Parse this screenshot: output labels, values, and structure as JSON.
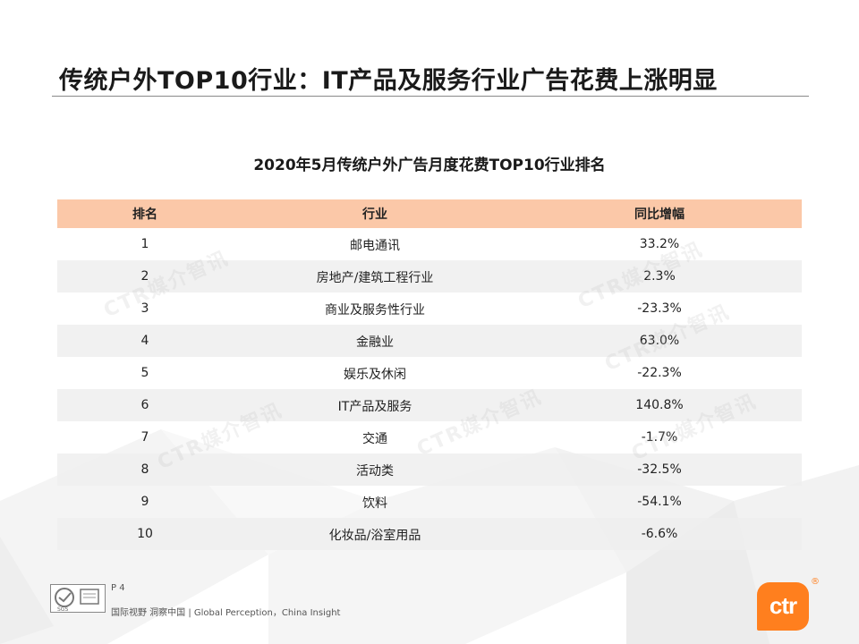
{
  "title": "传统户外TOP10行业：IT产品及服务行业广告花费上涨明显",
  "table_title": "2020年5月传统户外广告月度花费TOP10行业排名",
  "columns": {
    "rank": "排名",
    "industry": "行业",
    "change": "同比增幅"
  },
  "rows": [
    {
      "rank": "1",
      "industry": "邮电通讯",
      "change": "33.2%"
    },
    {
      "rank": "2",
      "industry": "房地产/建筑工程行业",
      "change": "2.3%"
    },
    {
      "rank": "3",
      "industry": "商业及服务性行业",
      "change": "-23.3%"
    },
    {
      "rank": "4",
      "industry": "金融业",
      "change": "63.0%"
    },
    {
      "rank": "5",
      "industry": "娱乐及休闲",
      "change": "-22.3%"
    },
    {
      "rank": "6",
      "industry": "IT产品及服务",
      "change": "140.8%"
    },
    {
      "rank": "7",
      "industry": "交通",
      "change": "-1.7%"
    },
    {
      "rank": "8",
      "industry": "活动类",
      "change": "-32.5%"
    },
    {
      "rank": "9",
      "industry": "饮料",
      "change": "-54.1%"
    },
    {
      "rank": "10",
      "industry": "化妆品/浴室用品",
      "change": "-6.6%"
    }
  ],
  "watermark": "CTR媒介智讯",
  "footer": {
    "page": "P 4",
    "tagline": "国际视野 洞察中国 | Global Perception，China Insight",
    "cert_text": "SGS"
  },
  "brand": {
    "logo_text": "ctr",
    "reg_mark": "®"
  },
  "colors": {
    "header_bg": "#fbc8a8",
    "stripe_bg": "#eeeeee",
    "brand_orange": "#ff7f1e"
  }
}
